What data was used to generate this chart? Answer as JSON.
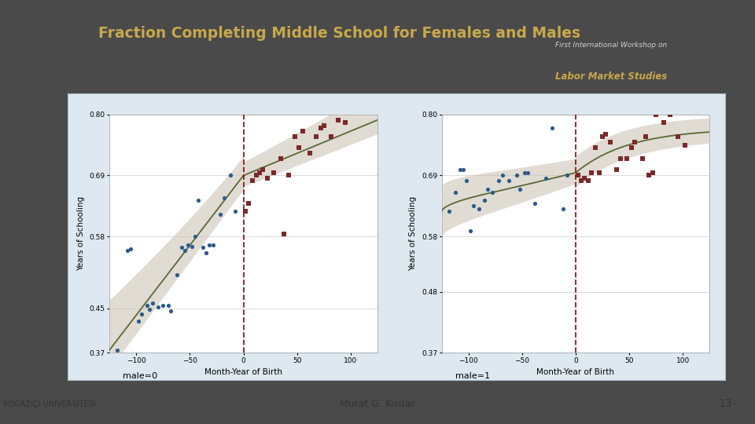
{
  "title": "Fraction Completing Middle School for Females and Males",
  "title_color": "#C8A84B",
  "bg_dark": "#4a4a4a",
  "bg_darker": "#2a2a2a",
  "panel_bg": "#dde8f0",
  "plot_bg": "#ffffff",
  "ylabel": "Years of Schooling",
  "xlabel": "Month-Year of Birth",
  "subtitle1": "male=0",
  "subtitle2": "male=1",
  "footer_text": "Murat G. Kirdar",
  "footer_num": "13",
  "footer_bg": "#d8d8d0",
  "ylim": [
    0.37,
    0.8
  ],
  "yticks_left": [
    0.37,
    0.45,
    0.58,
    0.69,
    0.8
  ],
  "yticks_right": [
    0.37,
    0.48,
    0.58,
    0.69,
    0.8
  ],
  "xticks": [
    -100,
    -50,
    0,
    50,
    100
  ],
  "xlim": [
    -125,
    125
  ],
  "dot_color_blue": "#2b5c8a",
  "dot_color_red": "#7a2a2a",
  "fit_color": "#5a6a35",
  "ci_color": "#c8bfb0",
  "vline_color": "#8b1a1a",
  "grid_color": "#cccccc",
  "left_dots_neg": [
    [
      -118,
      0.375
    ],
    [
      -108,
      0.555
    ],
    [
      -105,
      0.557
    ],
    [
      -98,
      0.427
    ],
    [
      -95,
      0.44
    ],
    [
      -90,
      0.455
    ],
    [
      -88,
      0.448
    ],
    [
      -85,
      0.46
    ],
    [
      -80,
      0.452
    ],
    [
      -75,
      0.455
    ],
    [
      -70,
      0.455
    ],
    [
      -68,
      0.445
    ],
    [
      -62,
      0.51
    ],
    [
      -58,
      0.56
    ],
    [
      -55,
      0.555
    ],
    [
      -52,
      0.565
    ],
    [
      -48,
      0.562
    ],
    [
      -45,
      0.58
    ],
    [
      -42,
      0.645
    ],
    [
      -38,
      0.56
    ],
    [
      -35,
      0.55
    ],
    [
      -32,
      0.565
    ],
    [
      -28,
      0.565
    ],
    [
      -22,
      0.62
    ],
    [
      -18,
      0.65
    ],
    [
      -12,
      0.69
    ],
    [
      -8,
      0.625
    ]
  ],
  "left_dots_pos": [
    [
      2,
      0.625
    ],
    [
      5,
      0.64
    ],
    [
      8,
      0.68
    ],
    [
      12,
      0.69
    ],
    [
      15,
      0.695
    ],
    [
      18,
      0.7
    ],
    [
      22,
      0.685
    ],
    [
      28,
      0.695
    ],
    [
      35,
      0.72
    ],
    [
      38,
      0.585
    ],
    [
      42,
      0.69
    ],
    [
      48,
      0.76
    ],
    [
      52,
      0.74
    ],
    [
      55,
      0.77
    ],
    [
      62,
      0.73
    ],
    [
      68,
      0.76
    ],
    [
      72,
      0.775
    ],
    [
      75,
      0.78
    ],
    [
      82,
      0.76
    ],
    [
      88,
      0.79
    ],
    [
      95,
      0.785
    ]
  ],
  "right_dots_neg": [
    [
      -118,
      0.625
    ],
    [
      -112,
      0.66
    ],
    [
      -108,
      0.7
    ],
    [
      -105,
      0.7
    ],
    [
      -102,
      0.68
    ],
    [
      -98,
      0.59
    ],
    [
      -95,
      0.635
    ],
    [
      -90,
      0.63
    ],
    [
      -85,
      0.645
    ],
    [
      -82,
      0.665
    ],
    [
      -78,
      0.66
    ],
    [
      -72,
      0.68
    ],
    [
      -68,
      0.69
    ],
    [
      -62,
      0.68
    ],
    [
      -55,
      0.69
    ],
    [
      -52,
      0.665
    ],
    [
      -48,
      0.695
    ],
    [
      -45,
      0.695
    ],
    [
      -38,
      0.64
    ],
    [
      -28,
      0.685
    ],
    [
      -22,
      0.775
    ],
    [
      -12,
      0.63
    ],
    [
      -8,
      0.69
    ]
  ],
  "right_dots_pos": [
    [
      2,
      0.69
    ],
    [
      5,
      0.68
    ],
    [
      8,
      0.685
    ],
    [
      12,
      0.68
    ],
    [
      15,
      0.695
    ],
    [
      18,
      0.74
    ],
    [
      22,
      0.695
    ],
    [
      25,
      0.76
    ],
    [
      28,
      0.765
    ],
    [
      32,
      0.75
    ],
    [
      38,
      0.7
    ],
    [
      42,
      0.72
    ],
    [
      48,
      0.72
    ],
    [
      52,
      0.74
    ],
    [
      55,
      0.75
    ],
    [
      62,
      0.72
    ],
    [
      65,
      0.76
    ],
    [
      68,
      0.69
    ],
    [
      72,
      0.695
    ],
    [
      75,
      0.8
    ],
    [
      82,
      0.785
    ],
    [
      88,
      0.8
    ],
    [
      95,
      0.76
    ],
    [
      102,
      0.745
    ]
  ]
}
